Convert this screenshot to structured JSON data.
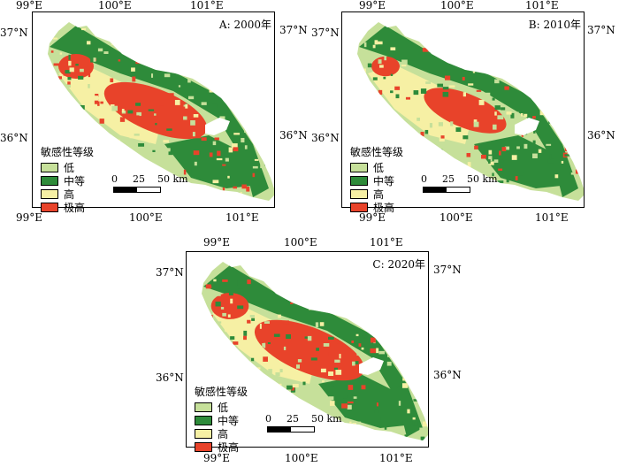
{
  "colors": {
    "low": "#c6e09a",
    "mid": "#2e8b3a",
    "high": "#f6f0a4",
    "very_high": "#e8432a",
    "lake": "#ffffff"
  },
  "legend": {
    "title": "敏感性等级",
    "items": [
      {
        "label": "低",
        "color": "#c6e09a"
      },
      {
        "label": "中等",
        "color": "#2e8b3a"
      },
      {
        "label": "高",
        "color": "#f6f0a4"
      },
      {
        "label": "极高",
        "color": "#e8432a"
      }
    ]
  },
  "scalebar": {
    "zero": "0",
    "mid": "25",
    "end": "50 km"
  },
  "axes": {
    "lon": [
      "99°E",
      "100°E",
      "101°E"
    ],
    "lat": [
      "37°N",
      "36°N"
    ]
  },
  "panels": [
    {
      "label": "A: 2000年",
      "very_high_share": 0.3
    },
    {
      "label": "B: 2010年",
      "very_high_share": 0.24
    },
    {
      "label": "C: 2020年",
      "very_high_share": 0.32
    }
  ]
}
